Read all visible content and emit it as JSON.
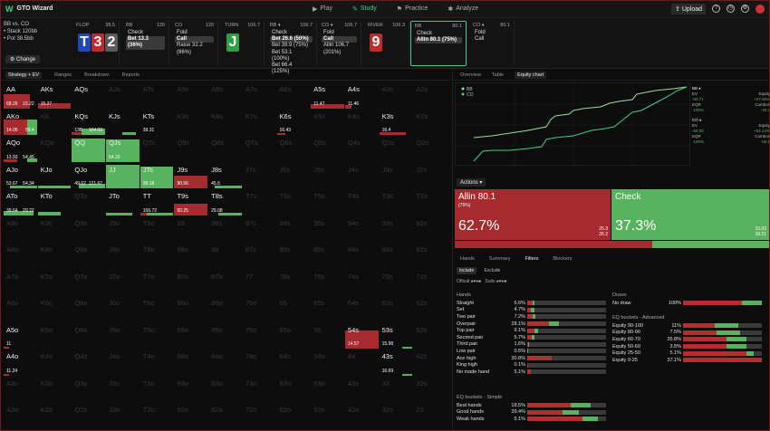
{
  "app": {
    "title": "GTO Wizard"
  },
  "nav": [
    {
      "label": "Play"
    },
    {
      "label": "Study"
    },
    {
      "label": "Practice"
    },
    {
      "label": "Analyze"
    }
  ],
  "topbar": {
    "upload": "Upload"
  },
  "info": {
    "line1": "BB vs. CO",
    "line2": "• Stack 120bb",
    "line3": "• Pot 38.5bb",
    "change": "Change"
  },
  "seats": [
    {
      "pos": "FLOP",
      "amt": "38.5",
      "cards": [
        "T",
        "3",
        "2"
      ]
    },
    {
      "pos": "BB",
      "amt": "120",
      "acts": [
        "Check",
        "Bet 13.3 (36%)"
      ],
      "sel": 1
    },
    {
      "pos": "CO",
      "amt": "120",
      "acts": [
        "Fold",
        "Call",
        "Raise 32.2 (86%)"
      ],
      "sel": 1
    },
    {
      "pos": "TURN",
      "amt": "106.7",
      "cards": [
        "J"
      ]
    },
    {
      "pos": "BB ♦",
      "amt": "106.7",
      "acts": [
        "Check",
        "Bet 26.6 (50%)",
        "Bet 39.9 (75%)",
        "Bet 53.1 (100%)",
        "Bet 66.4 (125%)"
      ],
      "sel": 1
    },
    {
      "pos": "CO ♦",
      "amt": "106.7",
      "acts": [
        "Fold",
        "Call",
        "Allin 106.7 (201%)"
      ],
      "sel": 1
    },
    {
      "pos": "RIVER",
      "amt": "106.3",
      "cards": [
        "9"
      ]
    },
    {
      "pos": "BB",
      "amt": "80.1",
      "acts": [
        "Check",
        "Allin 80.1 (75%)"
      ],
      "sel": 1
    },
    {
      "pos": "CO ♦",
      "amt": "80.1",
      "acts": [
        "Fold",
        "Call"
      ],
      "sel": -1
    }
  ],
  "left_tabs": [
    "Strategy + EV",
    "Ranges",
    "Breakdown",
    "Reports"
  ],
  "grid_values": {
    "AA": [
      "68.26",
      "15.22"
    ],
    "AKs": [
      "15.27",
      ""
    ],
    "AQs": [
      "",
      ""
    ],
    "A5s": [
      "11.47",
      ""
    ],
    "A4s": [
      "11.46",
      ""
    ],
    "AKo": [
      "14.05",
      "59.4"
    ],
    "KQs": [
      "138",
      "104.03"
    ],
    "KTs": [
      "39.31",
      ""
    ],
    "K6s": [
      "16.43",
      ""
    ],
    "K3s": [
      "16.4",
      ""
    ],
    "AQo": [
      "13.93",
      "54.45"
    ],
    "QJs": [
      "54.22",
      ""
    ],
    "AJo": [
      "53.67",
      "54.34"
    ],
    "QJo": [
      "49.62",
      "121.67"
    ],
    "JTs": [
      "99.18",
      ""
    ],
    "J9s": [
      "90.56",
      ""
    ],
    "J8s": [
      "45.5",
      ""
    ],
    "ATo": [
      "39.64",
      "29.22"
    ],
    "TT": [
      "106.72",
      ""
    ],
    "T9s": [
      "90.25",
      ""
    ],
    "T8s": [
      "29.08",
      ""
    ],
    "A5o": [
      "11",
      ""
    ],
    "54s": [
      "14.57",
      ""
    ],
    "53s": [
      "15.98",
      ""
    ],
    "A4o": [
      "11.24",
      ""
    ],
    "43s": [
      "16.69",
      ""
    ]
  },
  "right_tabs": [
    "Overview",
    "Table",
    "Equity chart"
  ],
  "chart_data": {
    "type": "line",
    "series": [
      {
        "name": "BB",
        "color": "#9be09a"
      },
      {
        "name": "CO",
        "color": "#3fd18a"
      }
    ],
    "side": [
      {
        "t": "BB ♦",
        "rows": [
          [
            "EV",
            "Equity"
          ],
          [
            "-80.71",
            "+47.68%"
          ],
          [
            "EQR",
            "Combos"
          ],
          [
            "-100%",
            "-40.2"
          ]
        ]
      },
      {
        "t": "CO ♦",
        "rows": [
          [
            "EV",
            "Equity"
          ],
          [
            "-55.08",
            "+52.14%"
          ],
          [
            "EQR",
            "Combos"
          ],
          [
            "-100%",
            "-56.8"
          ]
        ]
      }
    ]
  },
  "actions": {
    "header": "Actions",
    "allin": {
      "name": "Allin 80.1",
      "sub": "(75%)",
      "pct": "62.7%",
      "mini": "25.3",
      "mini2": "26.2"
    },
    "check": {
      "name": "Check",
      "pct": "37.3%",
      "mini": "15.03",
      "mini2": "18.21"
    },
    "fill": 0.627
  },
  "bottom_tabs": [
    "Hands",
    "Summary",
    "Filters",
    "Blockers"
  ],
  "filters": {
    "include": "Include",
    "exclude": "Exclude",
    "suits": "Suits",
    "offsuit": "Offsuit"
  },
  "hands": {
    "title": "Hands",
    "rows": [
      [
        "Straight",
        "6.6%",
        6.6,
        3
      ],
      [
        "Set",
        "4.7%",
        4.7,
        4
      ],
      [
        "Two pair",
        "7.2%",
        7.2,
        3
      ],
      [
        "Overpair",
        "28.1%",
        28.1,
        12
      ],
      [
        "Top pair",
        "9.1%",
        9.1,
        5
      ],
      [
        "Second pair",
        "5.7%",
        5.7,
        3
      ],
      [
        "Third pair",
        "1.6%",
        1.6,
        1
      ],
      [
        "Low pair",
        "0.5%",
        0.5,
        0.3
      ],
      [
        "Ace high",
        "30.8%",
        30.8,
        0
      ],
      [
        "King high",
        "0.1%",
        0.1,
        0
      ],
      [
        "No made hand",
        "5.1%",
        5.1,
        0
      ]
    ]
  },
  "draws": {
    "title": "Draws",
    "rows": [
      [
        "No draw",
        "100%",
        75,
        25
      ]
    ]
  },
  "eq_adv": {
    "title": "EQ buckets - Advanced",
    "rows": [
      [
        "Equity 90-100",
        "11%",
        40,
        30
      ],
      [
        "Equity 80-90",
        "7.5%",
        42,
        30
      ],
      [
        "Equity 60-70",
        "35.8%",
        55,
        25
      ],
      [
        "Equity 50-60",
        "3.5%",
        55,
        25
      ],
      [
        "Equity 25-50",
        "5.1%",
        80,
        10
      ],
      [
        "Equity 0-25",
        "37.1%",
        100,
        0
      ]
    ]
  },
  "eq_simple": {
    "title": "EQ buckets - Simple",
    "rows": [
      [
        "Best hands",
        "18.5%",
        55,
        25
      ],
      [
        "Good hands",
        "39.4%",
        45,
        20
      ],
      [
        "Weak hands",
        "5.1%",
        70,
        20
      ]
    ]
  }
}
